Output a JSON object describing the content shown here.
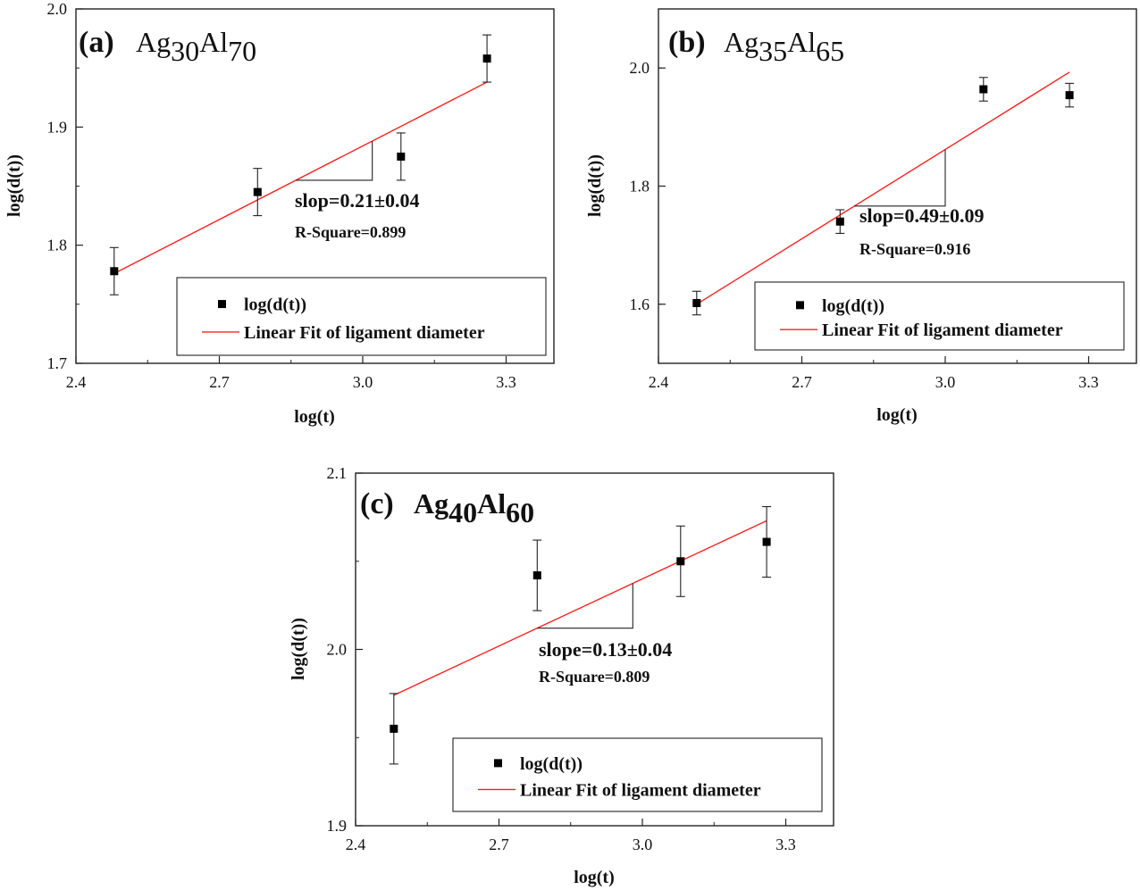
{
  "chart_data": [
    {
      "type": "scatter",
      "panel_letter": "(a)",
      "composition": {
        "el1": "Ag",
        "sub1": "30",
        "el2": "Al",
        "sub2": "70",
        "bold": false
      },
      "xlabel": "log(t)",
      "ylabel": "log(d(t))",
      "xlim": [
        2.4,
        3.4
      ],
      "ylim": [
        1.7,
        2.0
      ],
      "xticks": [
        "2.4",
        "2.7",
        "3.0",
        "3.3"
      ],
      "yticks": [
        "1.7",
        "1.8",
        "1.9",
        "2.0"
      ],
      "series": [
        {
          "name": "log(d(t))",
          "x": [
            2.48,
            2.78,
            3.08,
            3.26
          ],
          "y": [
            1.778,
            1.845,
            1.875,
            1.958
          ],
          "yerr": [
            0.02,
            0.02,
            0.02,
            0.02
          ],
          "color": "#000000"
        },
        {
          "name": "Linear Fit of ligament diameter",
          "type": "line",
          "x": [
            2.48,
            3.26
          ],
          "y": [
            1.776,
            1.938
          ],
          "color": "#ff2020"
        }
      ],
      "slope_triangle": {
        "x1": 2.86,
        "x2": 3.02
      },
      "annotations": {
        "slope": "slop=0.21±0.04",
        "rsq": "R-Square=0.899"
      },
      "legend_position": "bottom-right"
    },
    {
      "type": "scatter",
      "panel_letter": "(b)",
      "composition": {
        "el1": "Ag",
        "sub1": "35",
        "el2": "Al",
        "sub2": "65",
        "bold": false
      },
      "xlabel": "log(t)",
      "ylabel": "log(d(t))",
      "xlim": [
        2.4,
        3.4
      ],
      "ylim": [
        1.5,
        2.1
      ],
      "xticks": [
        "2.4",
        "2.7",
        "3.0",
        "3.3"
      ],
      "yticks": [
        "1.6",
        "1.8",
        "2.0"
      ],
      "series": [
        {
          "name": "log(d(t))",
          "x": [
            2.48,
            2.78,
            3.08,
            3.26
          ],
          "y": [
            1.602,
            1.74,
            1.964,
            1.954
          ],
          "yerr": [
            0.02,
            0.02,
            0.02,
            0.02
          ],
          "color": "#000000"
        },
        {
          "name": "Linear Fit of ligament diameter",
          "type": "line",
          "x": [
            2.48,
            3.26
          ],
          "y": [
            1.6,
            1.993
          ],
          "color": "#ff2020"
        }
      ],
      "slope_triangle": {
        "x1": 2.81,
        "x2": 3.0
      },
      "annotations": {
        "slope": "slop=0.49±0.09",
        "rsq": "R-Square=0.916"
      },
      "legend_position": "bottom-right"
    },
    {
      "type": "scatter",
      "panel_letter": "(c)",
      "composition": {
        "el1": "Ag",
        "sub1": "40",
        "el2": "Al",
        "sub2": "60",
        "bold": true
      },
      "xlabel": "log(t)",
      "ylabel": "log(d(t))",
      "xlim": [
        2.4,
        3.4
      ],
      "ylim": [
        1.9,
        2.1
      ],
      "xticks": [
        "2.4",
        "2.7",
        "3.0",
        "3.3"
      ],
      "yticks": [
        "1.9",
        "2.0",
        "2.1"
      ],
      "series": [
        {
          "name": "log(d(t))",
          "x": [
            2.48,
            2.78,
            3.08,
            3.26
          ],
          "y": [
            1.955,
            2.042,
            2.05,
            2.061
          ],
          "yerr": [
            0.02,
            0.02,
            0.02,
            0.02
          ],
          "color": "#000000"
        },
        {
          "name": "Linear Fit of ligament diameter",
          "type": "line",
          "x": [
            2.48,
            3.26
          ],
          "y": [
            1.974,
            2.073
          ],
          "color": "#ff2020"
        }
      ],
      "slope_triangle": {
        "x1": 2.78,
        "x2": 2.98
      },
      "annotations": {
        "slope": "slope=0.13±0.04",
        "rsq": "R-Square=0.809"
      },
      "legend_position": "bottom-right"
    }
  ]
}
